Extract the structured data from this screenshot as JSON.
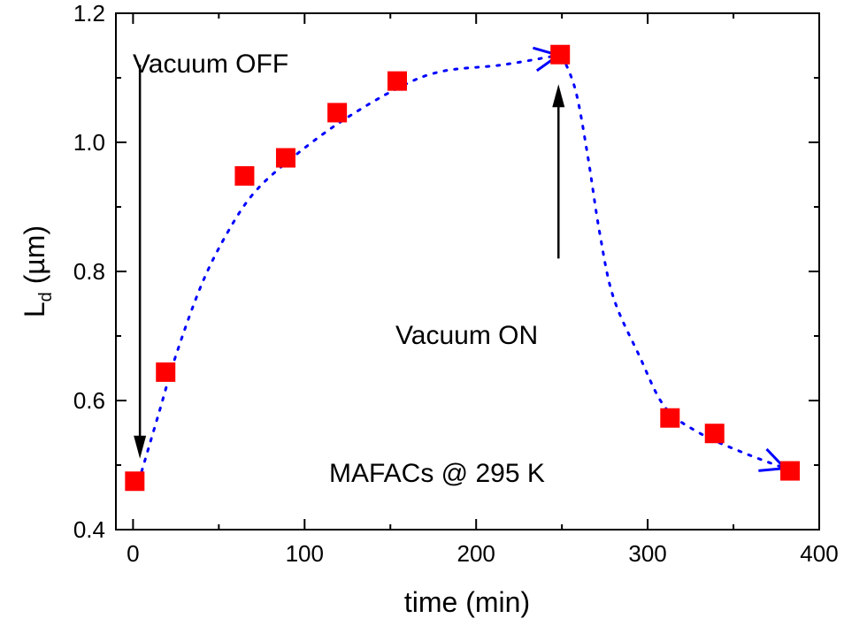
{
  "chart_data": {
    "type": "scatter",
    "title": "",
    "xlabel": "time (min)",
    "ylabel_main": "L",
    "ylabel_sub": "d",
    "ylabel_unit": " (µm)",
    "xlim": [
      -10,
      400
    ],
    "ylim": [
      0.4,
      1.2
    ],
    "xticks": [
      0,
      100,
      200,
      300,
      400
    ],
    "xtick_labels": [
      "0",
      "100",
      "200",
      "300",
      "400"
    ],
    "yticks": [
      0.4,
      0.6,
      0.8,
      1.0,
      1.2
    ],
    "ytick_labels": [
      "0.4",
      "0.6",
      "0.8",
      "1.0",
      "1.2"
    ],
    "grid": false,
    "series": [
      {
        "name": "Ld",
        "marker": "square",
        "color": "#ff0000",
        "x": [
          1,
          19,
          65,
          89,
          119,
          154,
          249,
          313,
          339,
          383
        ],
        "y": [
          0.475,
          0.644,
          0.948,
          0.976,
          1.046,
          1.095,
          1.136,
          0.573,
          0.549,
          0.491
        ]
      }
    ],
    "guide_curves": [
      {
        "name": "rise",
        "color": "#0000ff",
        "style": "dotted",
        "x": [
          5,
          15,
          25,
          40,
          55,
          70,
          90,
          120,
          155,
          180,
          215,
          248
        ],
        "y": [
          0.49,
          0.58,
          0.67,
          0.78,
          0.86,
          0.92,
          0.97,
          1.03,
          1.085,
          1.11,
          1.12,
          1.135
        ]
      },
      {
        "name": "decay",
        "color": "#0000ff",
        "style": "dotted",
        "x": [
          250,
          258,
          265,
          272,
          280,
          295,
          310,
          330,
          355,
          380
        ],
        "y": [
          1.135,
          1.08,
          0.98,
          0.86,
          0.76,
          0.67,
          0.59,
          0.55,
          0.52,
          0.495
        ]
      }
    ],
    "annotations": [
      {
        "text": "Vacuum OFF",
        "arrow_from": [
          4,
          1.12
        ],
        "arrow_to": [
          4,
          0.51
        ]
      },
      {
        "text": "Vacuum ON",
        "arrow_from": [
          248,
          0.82
        ],
        "arrow_to": [
          248,
          1.09
        ]
      },
      {
        "text": "MAFACs @ 295 K"
      }
    ]
  }
}
